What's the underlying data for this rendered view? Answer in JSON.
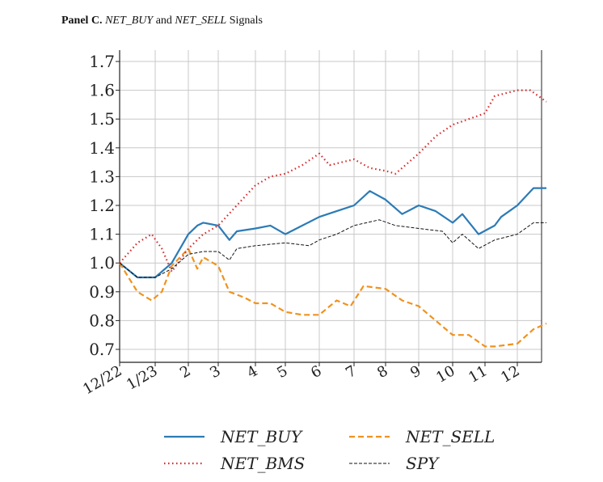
{
  "title": {
    "panel": "Panel C.",
    "part1": "NET_BUY",
    "part2": " and ",
    "part3": "NET_SELL",
    "part4": " Signals"
  },
  "chart_data": {
    "type": "line",
    "title": "Panel C. NET_BUY and NET_SELL Signals",
    "xlabel": "",
    "ylabel": "",
    "ylim": [
      0.65,
      1.74
    ],
    "xlim": [
      0,
      12.9
    ],
    "grid": true,
    "yticks": [
      0.7,
      0.8,
      0.9,
      1.0,
      1.1,
      1.2,
      1.3,
      1.4,
      1.5,
      1.6,
      1.7
    ],
    "ytick_labels": [
      "0.7",
      "0.8",
      "0.9",
      "1.0",
      "1.1",
      "1.2",
      "1.3",
      "1.4",
      "1.5",
      "1.6",
      "1.7"
    ],
    "xticks": [
      0,
      1,
      2,
      3,
      4,
      5,
      6,
      7,
      8,
      9,
      10,
      11,
      12
    ],
    "xtick_labels": [
      "12/22",
      "1/23",
      "2",
      "3",
      "4",
      "5",
      "6",
      "7",
      "8",
      "9",
      "10",
      "11",
      "12"
    ],
    "legend_position": "bottom",
    "series": [
      {
        "name": "NET_BUY",
        "color": "#2c7bb6",
        "style": "solid",
        "x": [
          0,
          0.5,
          1,
          1.5,
          2,
          2.3,
          2.5,
          3,
          3.3,
          3.5,
          4,
          4.5,
          5,
          5.5,
          6,
          6.5,
          7,
          7.5,
          8,
          8.5,
          9,
          9.5,
          10,
          10.3,
          10.8,
          11.3,
          11.5,
          12,
          12.5,
          12.9
        ],
        "y": [
          1.0,
          0.95,
          0.95,
          1.0,
          1.1,
          1.13,
          1.14,
          1.13,
          1.08,
          1.11,
          1.12,
          1.13,
          1.1,
          1.13,
          1.16,
          1.18,
          1.2,
          1.25,
          1.22,
          1.17,
          1.2,
          1.18,
          1.14,
          1.17,
          1.1,
          1.13,
          1.16,
          1.2,
          1.26,
          1.26
        ]
      },
      {
        "name": "NET_SELL",
        "color": "#f0921e",
        "style": "dashed",
        "x": [
          0,
          0.5,
          0.9,
          1.2,
          1.5,
          2,
          2.3,
          2.5,
          3,
          3.3,
          3.7,
          4,
          4.5,
          5,
          5.5,
          6,
          6.5,
          6.9,
          7.3,
          8,
          8.5,
          9,
          9.5,
          10,
          10.5,
          11,
          11.3,
          12,
          12.5,
          12.9
        ],
        "y": [
          1.0,
          0.9,
          0.87,
          0.9,
          0.99,
          1.05,
          0.98,
          1.02,
          0.99,
          0.9,
          0.88,
          0.86,
          0.86,
          0.83,
          0.82,
          0.82,
          0.87,
          0.85,
          0.92,
          0.91,
          0.87,
          0.85,
          0.8,
          0.75,
          0.75,
          0.71,
          0.71,
          0.72,
          0.77,
          0.79
        ]
      },
      {
        "name": "NET_BMS",
        "color": "#d62728",
        "style": "dotted",
        "x": [
          0,
          0.5,
          0.9,
          1.2,
          1.5,
          2,
          2.5,
          3,
          3.5,
          4,
          4.5,
          5,
          5.5,
          6,
          6.3,
          7,
          7.5,
          8,
          8.3,
          8.7,
          9,
          9.5,
          10,
          10.5,
          11,
          11.3,
          12,
          12.4,
          12.9
        ],
        "y": [
          1.0,
          1.07,
          1.1,
          1.05,
          0.97,
          1.05,
          1.1,
          1.13,
          1.2,
          1.27,
          1.3,
          1.31,
          1.34,
          1.38,
          1.34,
          1.36,
          1.33,
          1.32,
          1.31,
          1.35,
          1.38,
          1.44,
          1.48,
          1.5,
          1.52,
          1.58,
          1.6,
          1.6,
          1.56
        ]
      },
      {
        "name": "SPY",
        "color": "#111111",
        "style": "thin-dashed",
        "x": [
          0,
          0.5,
          1,
          1.5,
          2,
          2.5,
          3,
          3.3,
          3.5,
          4,
          5,
          5.7,
          6,
          6.5,
          7,
          7.8,
          8.3,
          9,
          9.7,
          10,
          10.3,
          10.8,
          11.3,
          12,
          12.5,
          12.9
        ],
        "y": [
          1.0,
          0.95,
          0.95,
          0.98,
          1.03,
          1.04,
          1.04,
          1.01,
          1.05,
          1.06,
          1.07,
          1.06,
          1.08,
          1.1,
          1.13,
          1.15,
          1.13,
          1.12,
          1.11,
          1.07,
          1.1,
          1.05,
          1.08,
          1.1,
          1.14,
          1.14
        ]
      }
    ]
  }
}
